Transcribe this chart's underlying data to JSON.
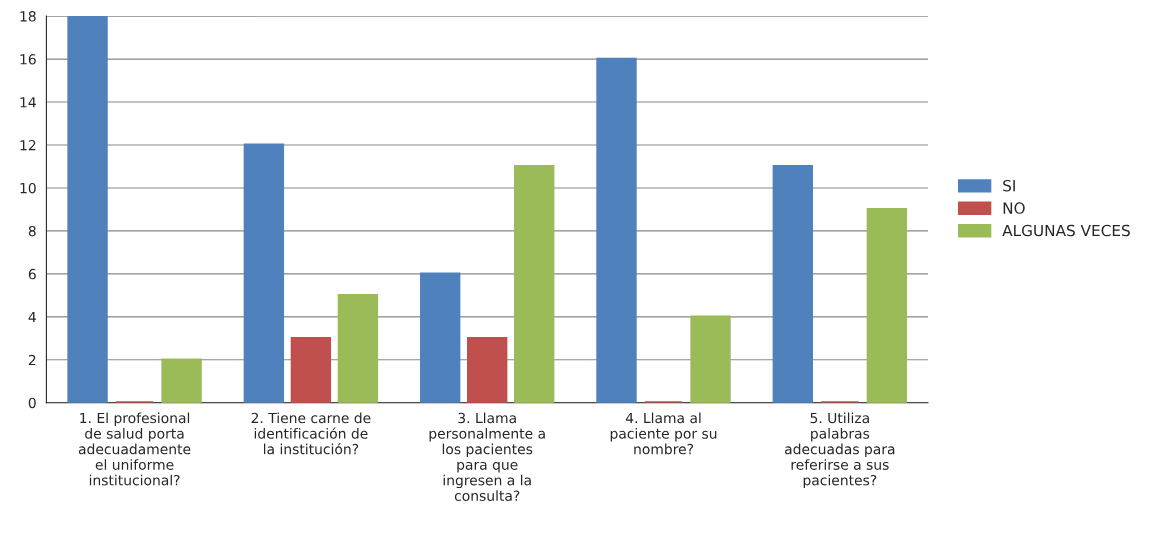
{
  "chart_data": {
    "type": "bar",
    "categories": [
      "1. El profesional\nde salud porta\nadecuadamente\nel uniforme\ninstitucional?",
      "2. Tiene carne de\nidentificación de\nla institución?",
      "3. Llama\npersonalmente a\nlos pacientes\npara que\ningresen a la\nconsulta?",
      "4. Llama al\npaciente por su\nnombre?",
      "5. Utiliza\npalabras\nadecuadas para\nreferirse a sus\npacientes?"
    ],
    "series": [
      {
        "name": "SI",
        "color": "#4f81bd",
        "values": [
          18,
          12,
          6,
          16,
          11
        ]
      },
      {
        "name": "NO",
        "color": "#c0504d",
        "values": [
          0,
          3,
          3,
          0,
          0
        ]
      },
      {
        "name": "ALGUNAS VECES",
        "color": "#9bbb59",
        "values": [
          2,
          5,
          11,
          4,
          9
        ]
      }
    ],
    "ylim": [
      0,
      18
    ],
    "yticks": [
      0,
      2,
      4,
      6,
      8,
      10,
      12,
      14,
      16,
      18
    ],
    "grid": "y",
    "legend": "right"
  }
}
